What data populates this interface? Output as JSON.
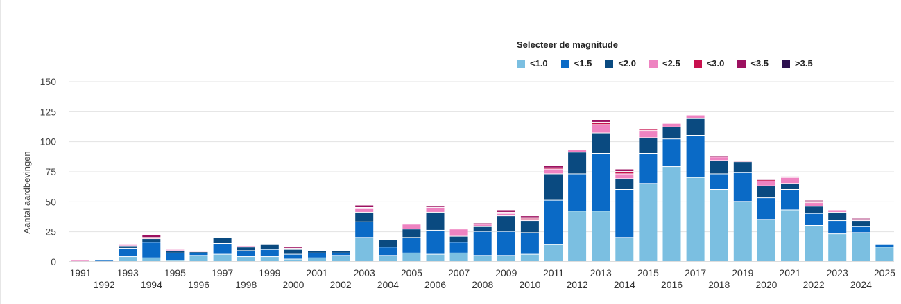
{
  "chart_data": {
    "type": "bar",
    "stacked": true,
    "ylabel": "Aantal aardbevingen",
    "ylim": [
      0,
      150
    ],
    "yticks": [
      0,
      25,
      50,
      75,
      100,
      125,
      150
    ],
    "legend_title": "Selecteer de magnitude",
    "categories": [
      "1991",
      "1992",
      "1993",
      "1994",
      "1995",
      "1996",
      "1997",
      "1998",
      "1999",
      "2000",
      "2001",
      "2002",
      "2003",
      "2004",
      "2005",
      "2006",
      "2007",
      "2008",
      "2009",
      "2010",
      "2011",
      "2012",
      "2013",
      "2014",
      "2015",
      "2016",
      "2017",
      "2018",
      "2019",
      "2020",
      "2021",
      "2022",
      "2023",
      "2024",
      "2025"
    ],
    "series": [
      {
        "name": "<1.0",
        "color": "#7bbfe1",
        "values": [
          0,
          0,
          4,
          3,
          1,
          5,
          6,
          4,
          4,
          2,
          3,
          5,
          20,
          5,
          7,
          6,
          7,
          5,
          5,
          6,
          14,
          42,
          42,
          20,
          65,
          79,
          70,
          60,
          50,
          35,
          43,
          30,
          23,
          24,
          12
        ]
      },
      {
        "name": "<1.5",
        "color": "#0a6ac6",
        "values": [
          0,
          1,
          7,
          13,
          6,
          2,
          9,
          5,
          6,
          4,
          4,
          2,
          13,
          7,
          13,
          20,
          9,
          20,
          20,
          18,
          37,
          31,
          48,
          40,
          25,
          23,
          35,
          13,
          24,
          18,
          17,
          10,
          11,
          5,
          2
        ]
      },
      {
        "name": "<2.0",
        "color": "#0a4a80",
        "values": [
          0,
          0,
          2,
          3,
          2,
          1,
          5,
          3,
          4,
          4,
          2,
          2,
          8,
          6,
          7,
          15,
          5,
          4,
          13,
          10,
          22,
          18,
          17,
          9,
          13,
          10,
          14,
          11,
          9,
          10,
          5,
          6,
          7,
          5,
          1
        ]
      },
      {
        "name": "<2.5",
        "color": "#ee83c1",
        "values": [
          1,
          0,
          1,
          0,
          1,
          1,
          0,
          1,
          0,
          0,
          0,
          0,
          3,
          0,
          4,
          4,
          6,
          2,
          2,
          1,
          4,
          2,
          7,
          4,
          6,
          3,
          3,
          3,
          0,
          4,
          5,
          3,
          2,
          1,
          0
        ]
      },
      {
        "name": "<3.0",
        "color": "#c8104e",
        "values": [
          0,
          0,
          0,
          1,
          0,
          0,
          0,
          0,
          0,
          1,
          0,
          0,
          1,
          0,
          0,
          0,
          0,
          0,
          1,
          1,
          1,
          0,
          2,
          2,
          1,
          0,
          0,
          0,
          0,
          1,
          0,
          1,
          0,
          0,
          0
        ]
      },
      {
        "name": "<3.5",
        "color": "#9c1160",
        "values": [
          0,
          0,
          0,
          2,
          0,
          0,
          0,
          0,
          0,
          1,
          0,
          0,
          2,
          0,
          0,
          1,
          0,
          1,
          2,
          2,
          2,
          0,
          2,
          2,
          0,
          0,
          0,
          1,
          1,
          1,
          1,
          1,
          0,
          1,
          0
        ]
      },
      {
        "name": ">3.5",
        "color": "#2d1150",
        "values": [
          0,
          0,
          0,
          0,
          0,
          0,
          0,
          0,
          0,
          0,
          0,
          0,
          0,
          0,
          0,
          0,
          0,
          0,
          0,
          0,
          0,
          0,
          0,
          0,
          0,
          0,
          0,
          0,
          0,
          0,
          0,
          0,
          0,
          0,
          0
        ]
      }
    ]
  }
}
